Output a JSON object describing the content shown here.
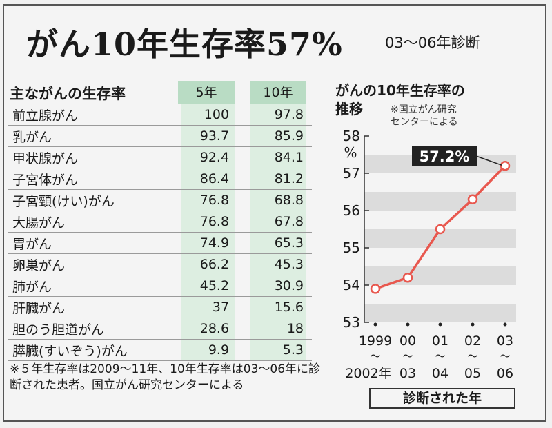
{
  "headline": "がん10年生存率57%",
  "headline_sub": "03〜06年診断",
  "table": {
    "title": "主ながんの生存率",
    "col_5yr": "5年",
    "col_10yr": "10年",
    "rows": [
      {
        "name": "前立腺がん",
        "v5": "100",
        "v10": "97.8"
      },
      {
        "name": "乳がん",
        "v5": "93.7",
        "v10": "85.9"
      },
      {
        "name": "甲状腺がん",
        "v5": "92.4",
        "v10": "84.1"
      },
      {
        "name": "子宮体がん",
        "v5": "86.4",
        "v10": "81.2"
      },
      {
        "name": "子宮頸(けい)がん",
        "v5": "76.8",
        "v10": "68.8"
      },
      {
        "name": "大腸がん",
        "v5": "76.8",
        "v10": "67.8"
      },
      {
        "name": "胃がん",
        "v5": "74.9",
        "v10": "65.3"
      },
      {
        "name": "卵巣がん",
        "v5": "66.2",
        "v10": "45.3"
      },
      {
        "name": "肺がん",
        "v5": "45.2",
        "v10": "30.9"
      },
      {
        "name": "肝臓がん",
        "v5": "37",
        "v10": "15.6"
      },
      {
        "name": "胆のう胆道がん",
        "v5": "28.6",
        "v10": "18"
      },
      {
        "name": "膵臓(すいぞう)がん",
        "v5": "9.9",
        "v10": "5.3"
      }
    ]
  },
  "footnote": "※５年生存率は2009〜11年、10年生存率は03〜06年に診断された患者。国立がん研究センターによる",
  "chart_data": {
    "type": "line",
    "title_line1": "がんの10年生存率の",
    "title_line2": "推移",
    "source_line1": "※国立がん研究",
    "source_line2": "センターによる",
    "ylabel": "%",
    "ylim": [
      53,
      58
    ],
    "yticks": [
      "58",
      "57",
      "56",
      "55",
      "54",
      "53"
    ],
    "x_labels_top": [
      "1999",
      "00",
      "01",
      "02",
      "03"
    ],
    "x_labels_bottom": [
      "2002年",
      "03",
      "04",
      "05",
      "06"
    ],
    "x_sep": "〜",
    "xlabel": "診断された年",
    "values": [
      53.9,
      54.2,
      55.5,
      56.3,
      57.2
    ],
    "callout": "57.2%",
    "line_color": "#e8584f",
    "band_color": "#dcdcdc"
  }
}
